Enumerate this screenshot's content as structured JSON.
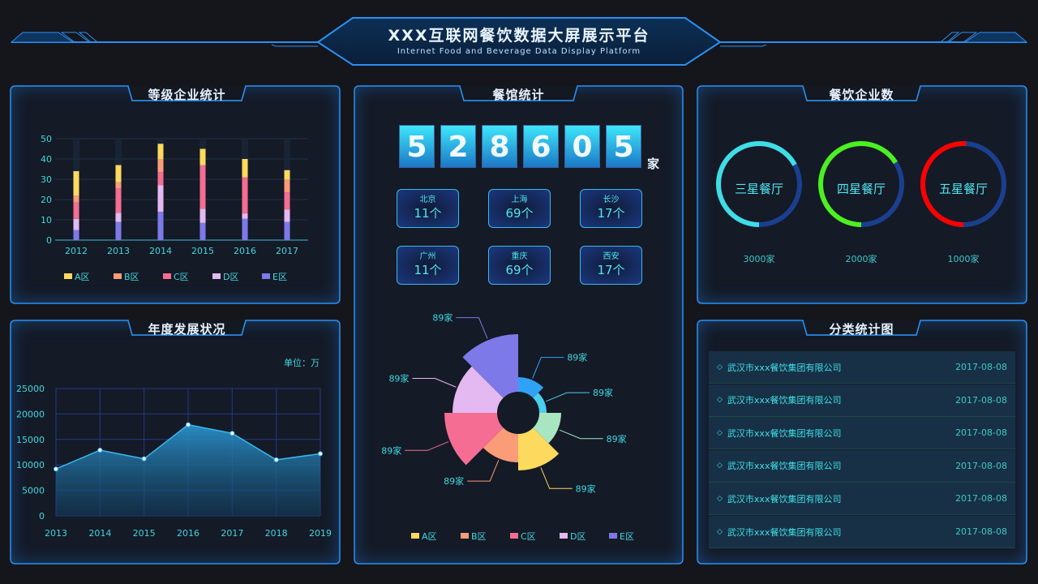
{
  "header": {
    "title": "XXX互联网餐饮数据大屏展示平台",
    "subtitle": "Internet Food and Beverage Data Display Platform"
  },
  "panels": {
    "grade": {
      "title": "等级企业统计"
    },
    "annual": {
      "title": "年度发展状况",
      "unit": "单位：万"
    },
    "restaurant": {
      "title": "餐馆统计"
    },
    "enterprise": {
      "title": "餐饮企业数"
    },
    "category": {
      "title": "分类统计图"
    }
  },
  "counter": {
    "digits": [
      "5",
      "2",
      "8",
      "6",
      "0",
      "5"
    ],
    "unit": "家"
  },
  "cities": [
    {
      "name": "北京",
      "value": "11个"
    },
    {
      "name": "上海",
      "value": "69个"
    },
    {
      "name": "长沙",
      "value": "17个"
    },
    {
      "name": "广州",
      "value": "11个"
    },
    {
      "name": "重庆",
      "value": "69个"
    },
    {
      "name": "西安",
      "value": "17个"
    }
  ],
  "rings": [
    {
      "label": "三星餐厅",
      "count": "3000家",
      "percent": 67,
      "color": "#3fdde6"
    },
    {
      "label": "四星餐厅",
      "count": "2000家",
      "percent": 66,
      "color": "#4cf020"
    },
    {
      "label": "五星餐厅",
      "count": "1000家",
      "percent": 51,
      "color": "#ff0000"
    }
  ],
  "ring_track_color": "#1b3f8f",
  "list": [
    {
      "name": "武汉市xxx餐饮集团有限公司",
      "date": "2017-08-08"
    },
    {
      "name": "武汉市xxx餐饮集团有限公司",
      "date": "2017-08-08"
    },
    {
      "name": "武汉市xxx餐饮集团有限公司",
      "date": "2017-08-08"
    },
    {
      "name": "武汉市xxx餐饮集团有限公司",
      "date": "2017-08-08"
    },
    {
      "name": "武汉市xxx餐饮集团有限公司",
      "date": "2017-08-08"
    },
    {
      "name": "武汉市xxx餐饮集团有限公司",
      "date": "2017-08-08"
    }
  ],
  "list_icon": "diamond-outline-icon",
  "chart_data": [
    {
      "type": "bar",
      "stacked": true,
      "categories": [
        "2012",
        "2013",
        "2014",
        "2015",
        "2016",
        "2017"
      ],
      "ylim": [
        0,
        50
      ],
      "yticks": [
        0,
        10,
        20,
        30,
        40,
        50
      ],
      "grid": true,
      "legend": "bottom",
      "series": [
        {
          "name": "E区",
          "color": "#7e79e8",
          "values": [
            5,
            9,
            14,
            8.5,
            10.5,
            9
          ]
        },
        {
          "name": "D区",
          "color": "#e4b8f0",
          "values": [
            5.5,
            4.5,
            13,
            7,
            2.5,
            6
          ]
        },
        {
          "name": "C区",
          "color": "#f56d92",
          "values": [
            8,
            12,
            6.5,
            21.5,
            18,
            8.5
          ]
        },
        {
          "name": "B区",
          "color": "#fa9c78",
          "values": [
            3.5,
            3,
            6.5,
            0,
            0,
            6.5
          ]
        },
        {
          "name": "A区",
          "color": "#fdd95e",
          "values": [
            12,
            8.5,
            7.5,
            8,
            9,
            4.5
          ]
        }
      ],
      "legend_order": [
        "A区",
        "B区",
        "C区",
        "D区",
        "E区"
      ]
    },
    {
      "type": "area",
      "x": [
        "2013",
        "2014",
        "2015",
        "2016",
        "2017",
        "2018",
        "2019"
      ],
      "values": [
        9200,
        12900,
        11200,
        17900,
        16200,
        11000,
        12200
      ],
      "ylim": [
        0,
        25000
      ],
      "yticks": [
        0,
        5000,
        10000,
        15000,
        20000,
        25000
      ],
      "grid": true,
      "color": "#2aa0e0"
    },
    {
      "type": "pie",
      "variant": "rose",
      "legend": "bottom",
      "slices": [
        {
          "label": "89家",
          "value": 44,
          "color": "#2fa2f6"
        },
        {
          "label": "89家",
          "value": 35,
          "color": "#4bcfee"
        },
        {
          "label": "89家",
          "value": 53,
          "color": "#a8e6c2"
        },
        {
          "label": "89家",
          "value": 71,
          "color": "#fdd95e"
        },
        {
          "label": "89家",
          "value": 61,
          "color": "#fa9c78"
        },
        {
          "label": "89家",
          "value": 91,
          "color": "#f56d92"
        },
        {
          "label": "89家",
          "value": 81,
          "color": "#e4b8f0"
        },
        {
          "label": "89家",
          "value": 97,
          "color": "#7e79e8"
        }
      ],
      "legend_items": [
        {
          "name": "A区",
          "color": "#fdd95e"
        },
        {
          "name": "B区",
          "color": "#fa9c78"
        },
        {
          "name": "C区",
          "color": "#f56d92"
        },
        {
          "name": "D区",
          "color": "#e4b8f0"
        },
        {
          "name": "E区",
          "color": "#7e79e8"
        }
      ]
    }
  ]
}
